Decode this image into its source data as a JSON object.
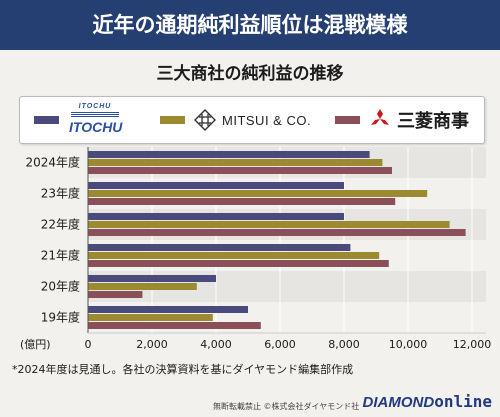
{
  "header": {
    "banner": "近年の通期純利益順位は混戦模様",
    "subtitle": "三大商社の純利益の推移"
  },
  "legend": [
    {
      "logo_text": "ITOCHU",
      "color": "#4a4b7c"
    },
    {
      "logo_text": "MITSUI & CO.",
      "color": "#9b8a2f"
    },
    {
      "logo_text": "三菱商事",
      "color": "#8b4f5a"
    }
  ],
  "chart_data": {
    "type": "bar",
    "orientation": "horizontal",
    "categories": [
      "2024年度",
      "23年度",
      "22年度",
      "21年度",
      "20年度",
      "19年度"
    ],
    "series": [
      {
        "name": "ITOCHU",
        "color": "#4a4b7c",
        "values": [
          8800,
          8000,
          8000,
          8200,
          4000,
          5000
        ]
      },
      {
        "name": "MITSUI & CO.",
        "color": "#9b8a2f",
        "values": [
          9200,
          10600,
          11300,
          9100,
          3400,
          3900
        ]
      },
      {
        "name": "三菱商事",
        "color": "#8b4f5a",
        "values": [
          9500,
          9600,
          11800,
          9400,
          1700,
          5400
        ]
      }
    ],
    "unit_label": "(億円)",
    "xlim": [
      0,
      12000
    ],
    "xticks": [
      "0",
      "2,000",
      "4,000",
      "6,000",
      "8,000",
      "10,000",
      "12,000"
    ],
    "grid": true,
    "legend_position": "top"
  },
  "footnote": "*2024年度は見通し。各社の決算資料を基にダイヤモンド編集部作成",
  "credit": "無断転載禁止 ©株式会社ダイヤモンド社",
  "brand": {
    "main": "DIAMOND",
    "suffix": "online"
  }
}
